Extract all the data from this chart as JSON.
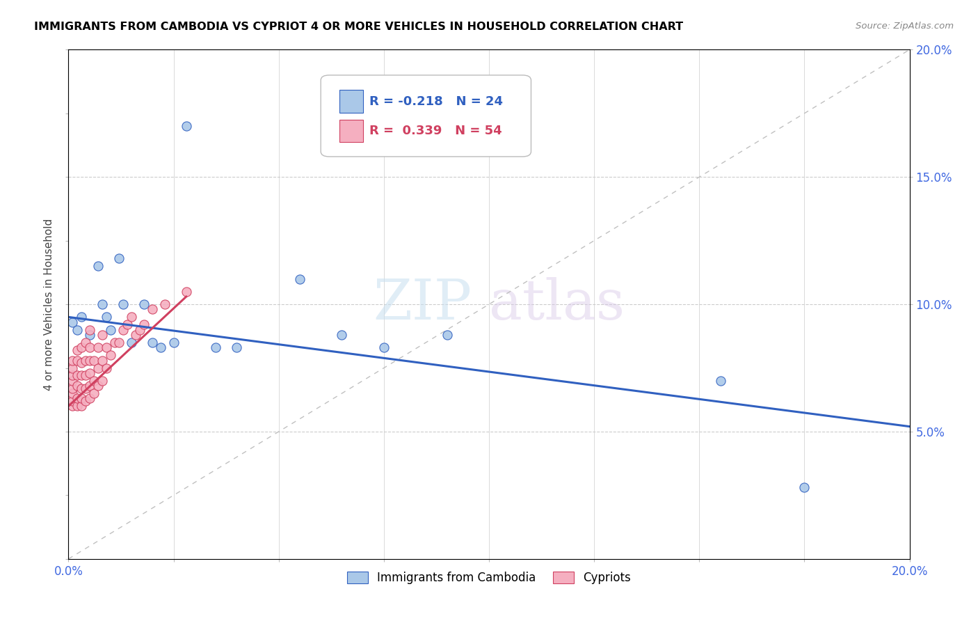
{
  "title": "IMMIGRANTS FROM CAMBODIA VS CYPRIOT 4 OR MORE VEHICLES IN HOUSEHOLD CORRELATION CHART",
  "source": "Source: ZipAtlas.com",
  "ylabel": "4 or more Vehicles in Household",
  "xlim": [
    0.0,
    0.2
  ],
  "ylim": [
    0.0,
    0.2
  ],
  "yticks_right": [
    0.05,
    0.1,
    0.15,
    0.2
  ],
  "ytick_labels_right": [
    "5.0%",
    "10.0%",
    "15.0%",
    "20.0%"
  ],
  "series1_color": "#aac8e8",
  "series2_color": "#f5afc0",
  "series1_label": "Immigrants from Cambodia",
  "series2_label": "Cypriots",
  "R1": -0.218,
  "N1": 24,
  "R2": 0.339,
  "N2": 54,
  "trend1_color": "#3060c0",
  "trend2_color": "#d04060",
  "watermark_zip": "ZIP",
  "watermark_atlas": "atlas",
  "cambodia_x": [
    0.001,
    0.002,
    0.003,
    0.005,
    0.007,
    0.008,
    0.009,
    0.01,
    0.012,
    0.013,
    0.015,
    0.018,
    0.02,
    0.022,
    0.025,
    0.028,
    0.035,
    0.04,
    0.055,
    0.065,
    0.075,
    0.09,
    0.155,
    0.175
  ],
  "cambodia_y": [
    0.093,
    0.09,
    0.095,
    0.088,
    0.115,
    0.1,
    0.095,
    0.09,
    0.118,
    0.1,
    0.085,
    0.1,
    0.085,
    0.083,
    0.085,
    0.17,
    0.083,
    0.083,
    0.11,
    0.088,
    0.083,
    0.088,
    0.07,
    0.028
  ],
  "cypriot_x": [
    0.001,
    0.001,
    0.001,
    0.001,
    0.001,
    0.001,
    0.001,
    0.001,
    0.002,
    0.002,
    0.002,
    0.002,
    0.002,
    0.002,
    0.003,
    0.003,
    0.003,
    0.003,
    0.003,
    0.003,
    0.004,
    0.004,
    0.004,
    0.004,
    0.004,
    0.005,
    0.005,
    0.005,
    0.005,
    0.005,
    0.005,
    0.006,
    0.006,
    0.006,
    0.007,
    0.007,
    0.007,
    0.008,
    0.008,
    0.008,
    0.009,
    0.009,
    0.01,
    0.011,
    0.012,
    0.013,
    0.014,
    0.015,
    0.016,
    0.017,
    0.018,
    0.02,
    0.023,
    0.028
  ],
  "cypriot_y": [
    0.06,
    0.062,
    0.065,
    0.067,
    0.07,
    0.072,
    0.075,
    0.078,
    0.06,
    0.063,
    0.068,
    0.072,
    0.078,
    0.082,
    0.06,
    0.063,
    0.067,
    0.072,
    0.077,
    0.083,
    0.062,
    0.067,
    0.072,
    0.078,
    0.085,
    0.063,
    0.068,
    0.073,
    0.078,
    0.083,
    0.09,
    0.065,
    0.07,
    0.078,
    0.068,
    0.075,
    0.083,
    0.07,
    0.078,
    0.088,
    0.075,
    0.083,
    0.08,
    0.085,
    0.085,
    0.09,
    0.092,
    0.095,
    0.088,
    0.09,
    0.092,
    0.098,
    0.1,
    0.105
  ]
}
